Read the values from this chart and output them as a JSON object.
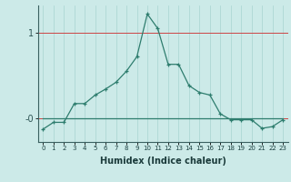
{
  "xlabel": "Humidex (Indice chaleur)",
  "x": [
    0,
    1,
    2,
    3,
    4,
    5,
    6,
    7,
    8,
    9,
    10,
    11,
    12,
    13,
    14,
    15,
    16,
    17,
    18,
    19,
    20,
    21,
    22,
    23
  ],
  "y_main": [
    -0.13,
    -0.05,
    -0.05,
    0.17,
    0.17,
    0.27,
    0.34,
    0.42,
    0.55,
    0.72,
    1.22,
    1.05,
    0.63,
    0.63,
    0.38,
    0.3,
    0.27,
    0.05,
    -0.02,
    -0.02,
    -0.02,
    -0.12,
    -0.1,
    -0.02
  ],
  "y_flat": [
    0.0,
    0.0,
    0.0,
    0.0,
    0.0,
    0.0,
    0.0,
    0.0,
    0.0,
    0.0,
    0.0,
    0.0,
    0.0,
    0.0,
    0.0,
    0.0,
    0.0,
    0.0,
    0.0,
    0.0,
    0.0,
    0.0,
    0.0,
    0.0
  ],
  "line_color": "#2e7d6e",
  "bg_color": "#cceae8",
  "hline_color": "#cc4444",
  "ylim": [
    -0.28,
    1.32
  ],
  "ytick_vals": [
    0.0,
    1.0
  ],
  "ytick_labels": [
    "-0",
    "1"
  ],
  "hlines": [
    0.0,
    1.0
  ]
}
